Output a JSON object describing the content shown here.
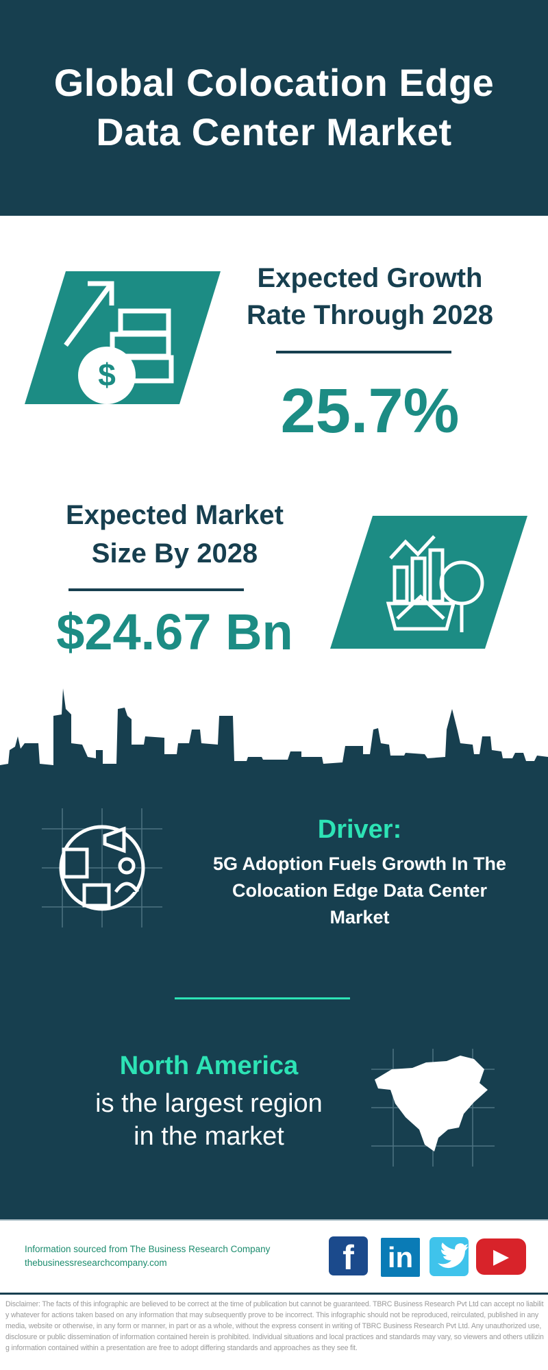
{
  "header": {
    "title_line1": "Global Colocation Edge",
    "title_line2": "Data Center Market"
  },
  "growth": {
    "label_line1": "Expected Growth",
    "label_line2": "Rate Through 2028",
    "value": "25.7%",
    "icon": "money-growth-icon"
  },
  "market_size": {
    "label_line1": "Expected Market",
    "label_line2": "Size By 2028",
    "value": "$24.67 Bn",
    "icon": "market-analysis-icon"
  },
  "driver": {
    "heading": "Driver:",
    "line1": "5G Adoption Fuels Growth In The",
    "line2": "Colocation Edge Data Center",
    "line3": "Market",
    "icon": "marketing-strategy-icon"
  },
  "region": {
    "name": "North America",
    "line1": "is the largest region",
    "line2": "in the market",
    "icon": "north-america-map-icon"
  },
  "footer": {
    "source": "Information sourced from The Business Research Company",
    "website": "thebusinessresearchcompany.com",
    "social": [
      {
        "name": "facebook",
        "glyph": "f",
        "color": "#1b4a8c"
      },
      {
        "name": "linkedin",
        "glyph": "in",
        "color": "#0a7bb6"
      },
      {
        "name": "twitter",
        "glyph": "🐦",
        "color": "#3fc3eb"
      },
      {
        "name": "youtube",
        "glyph": "▶",
        "color": "#d8232a"
      }
    ]
  },
  "disclaimer": "Disclaimer: The facts of this infographic are believed to be correct at the time of publication but cannot be guaranteed. TBRC Business Research Pvt Ltd can accept no liability whatever for actions taken based on any information that may subsequently prove to be incorrect. This infographic should not be reproduced, reirculated, published in any media, website or otherwise, in any form or manner, in part or as a whole, without the express consent in writing of TBRC Business Research Pvt Ltd. Any unauthorized use, disclosure or public dissemination of information contained herein is prohibited. Individual situations and local practices and standards may vary, so viewers and others utilizing information contained within a presentation are free to adopt differing standards and approaches as they see fit.",
  "colors": {
    "dark": "#173f4f",
    "teal": "#1c8c84",
    "mint": "#2de3b5"
  }
}
